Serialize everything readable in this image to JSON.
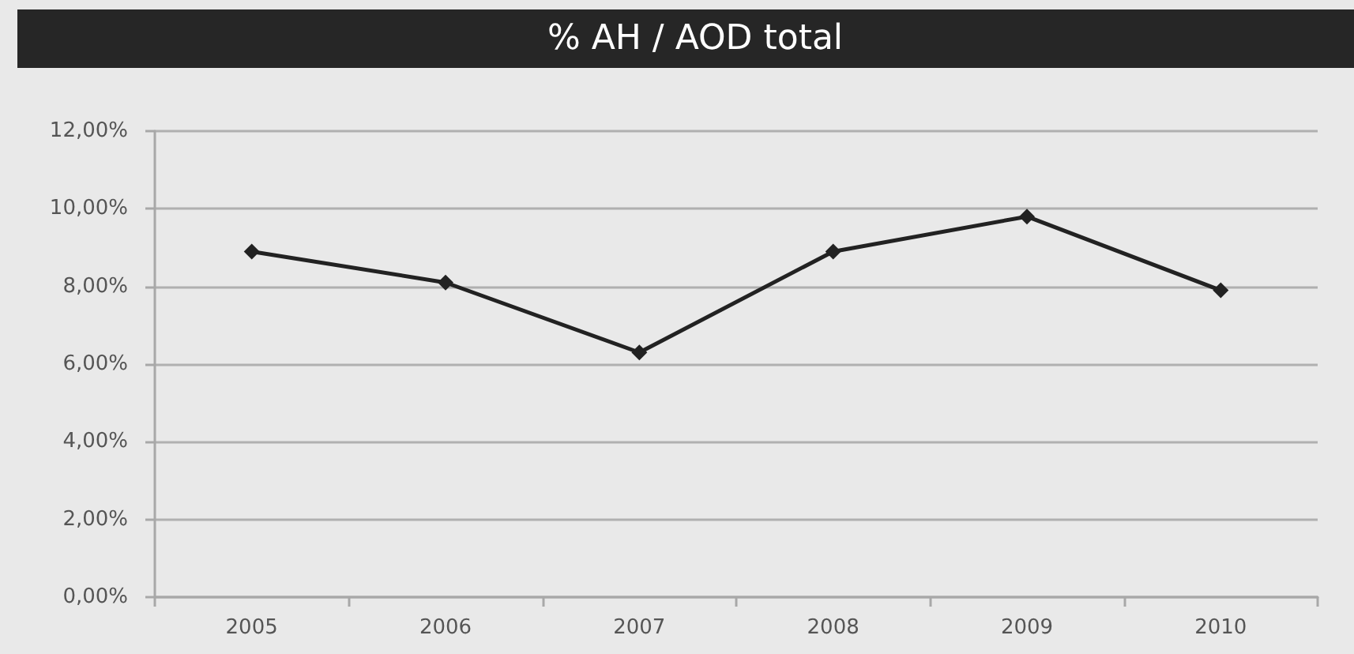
{
  "chart_data": {
    "type": "line",
    "title": "% AH / AOD total",
    "categories": [
      "2005",
      "2006",
      "2007",
      "2008",
      "2009",
      "2010"
    ],
    "values": [
      8.9,
      8.1,
      6.3,
      8.9,
      9.8,
      7.9
    ],
    "color": "#222222",
    "ylim": [
      0,
      12
    ],
    "yticks": [
      {
        "value": 0,
        "label": "0,00%"
      },
      {
        "value": 2,
        "label": "2,00%"
      },
      {
        "value": 4,
        "label": "4,00%"
      },
      {
        "value": 6,
        "label": "6,00%"
      },
      {
        "value": 8,
        "label": "8,00%"
      },
      {
        "value": 10,
        "label": "10,00%"
      },
      {
        "value": 12,
        "label": "12,00%"
      }
    ],
    "grid": "y",
    "marker": "diamond",
    "line_style": "solid"
  }
}
